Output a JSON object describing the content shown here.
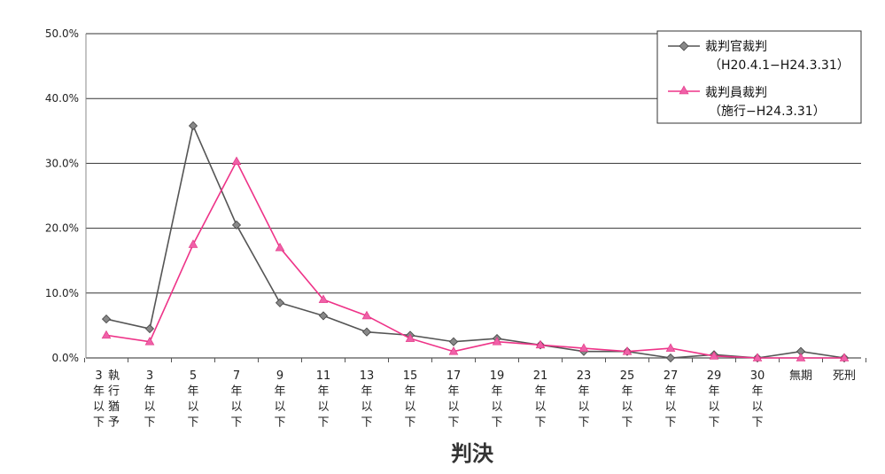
{
  "chart_data": {
    "type": "line",
    "xlabel": "判決",
    "ylabel": "",
    "ylim": [
      0,
      50
    ],
    "y_ticks": [
      "0.0%",
      "10.0%",
      "20.0%",
      "30.0%",
      "40.0%",
      "50.0%"
    ],
    "grid": "horizontal",
    "legend_position": "top-right",
    "categories": [
      "3年以下執行猶予",
      "3年以下",
      "5年以下",
      "7年以下",
      "9年以下",
      "11年以下",
      "13年以下",
      "15年以下",
      "17年以下",
      "19年以下",
      "21年以下",
      "23年以下",
      "25年以下",
      "27年以下",
      "29年以下",
      "30年以下",
      "無期",
      "死刑"
    ],
    "category_tick_columns": [
      [
        [
          "3",
          "年",
          "以",
          "下"
        ],
        [
          "執",
          "行",
          "猶",
          "予"
        ]
      ],
      [
        [
          "3",
          "年",
          "以",
          "下"
        ]
      ],
      [
        [
          "5",
          "年",
          "以",
          "下"
        ]
      ],
      [
        [
          "7",
          "年",
          "以",
          "下"
        ]
      ],
      [
        [
          "9",
          "年",
          "以",
          "下"
        ]
      ],
      [
        [
          "11",
          "年",
          "以",
          "下"
        ]
      ],
      [
        [
          "13",
          "年",
          "以",
          "下"
        ]
      ],
      [
        [
          "15",
          "年",
          "以",
          "下"
        ]
      ],
      [
        [
          "17",
          "年",
          "以",
          "下"
        ]
      ],
      [
        [
          "19",
          "年",
          "以",
          "下"
        ]
      ],
      [
        [
          "21",
          "年",
          "以",
          "下"
        ]
      ],
      [
        [
          "23",
          "年",
          "以",
          "下"
        ]
      ],
      [
        [
          "25",
          "年",
          "以",
          "下"
        ]
      ],
      [
        [
          "27",
          "年",
          "以",
          "下"
        ]
      ],
      [
        [
          "29",
          "年",
          "以",
          "下"
        ]
      ],
      [
        [
          "30",
          "年",
          "以",
          "下"
        ]
      ],
      [
        [
          "無期"
        ]
      ],
      [
        [
          "死刑"
        ]
      ]
    ],
    "series": [
      {
        "name": "裁判官裁判",
        "period": "（H20.4.1−H24.3.31）",
        "color": "#555555",
        "marker": "diamond",
        "values": [
          6.0,
          4.5,
          35.8,
          20.5,
          8.5,
          6.5,
          4.0,
          3.5,
          2.5,
          3.0,
          2.0,
          1.0,
          1.0,
          0.0,
          0.5,
          0.0,
          1.0,
          0.0
        ]
      },
      {
        "name": "裁判員裁判",
        "period": "（施行−H24.3.31）",
        "color": "#ee3388",
        "marker": "triangle",
        "values": [
          3.5,
          2.5,
          17.5,
          30.3,
          17.0,
          9.0,
          6.5,
          3.0,
          1.0,
          2.5,
          2.0,
          1.5,
          1.0,
          1.5,
          0.3,
          0.0,
          0.0,
          0.0
        ]
      }
    ]
  }
}
